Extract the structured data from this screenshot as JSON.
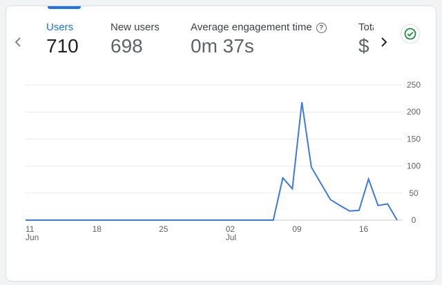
{
  "metrics": [
    {
      "label": "Users",
      "value": "710"
    },
    {
      "label": "New users",
      "value": "698"
    },
    {
      "label": "Average engagement time",
      "value": "0m 37s"
    },
    {
      "label": "Total revenue",
      "value": "$"
    }
  ],
  "colors": {
    "accent": "#1a73e8",
    "line": "#3b78e7",
    "check": "#1e8e3e"
  },
  "chart_data": {
    "type": "line",
    "x_ticks": [
      "11",
      "18",
      "25",
      "02",
      "09",
      "16"
    ],
    "x_month_labels": [
      {
        "tick_index": 0,
        "label": "Jun"
      },
      {
        "tick_index": 3,
        "label": "Jul"
      }
    ],
    "x_start": "Jun 11",
    "ylim": [
      0,
      250
    ],
    "y_ticks": [
      0,
      50,
      100,
      150,
      200,
      250
    ],
    "series": [
      {
        "name": "Users",
        "values": [
          0,
          0,
          0,
          0,
          0,
          0,
          0,
          0,
          0,
          0,
          0,
          0,
          0,
          0,
          0,
          0,
          0,
          0,
          0,
          0,
          0,
          0,
          0,
          0,
          0,
          0,
          0,
          78,
          58,
          218,
          98,
          68,
          38,
          27,
          17,
          18,
          76,
          27,
          30,
          0
        ]
      }
    ]
  }
}
